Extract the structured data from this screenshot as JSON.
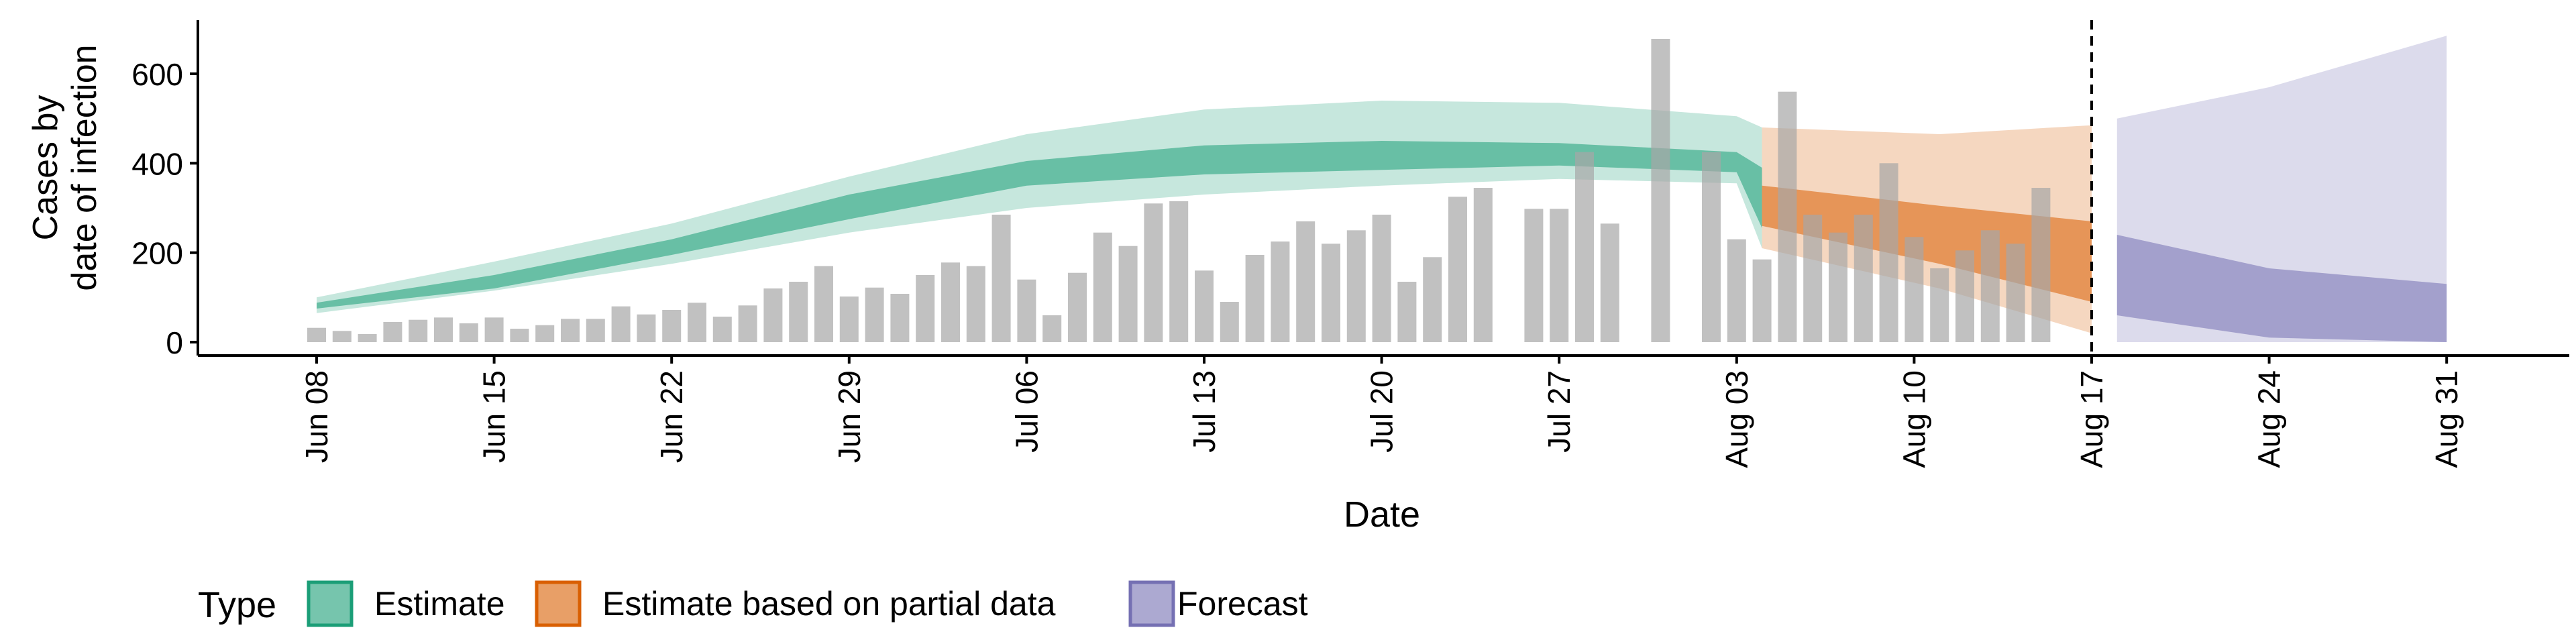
{
  "chart_data": {
    "type": "area",
    "xlabel": "Date",
    "ylabel_lines": [
      "Cases by",
      "date of infection"
    ],
    "ylim": [
      -30,
      720
    ],
    "y_ticks": [
      0,
      200,
      400,
      600
    ],
    "x_ticks": [
      "Jun 08",
      "Jun 15",
      "Jun 22",
      "Jun 29",
      "Jul 06",
      "Jul 13",
      "Jul 20",
      "Jul 27",
      "Aug 03",
      "Aug 10",
      "Aug 17",
      "Aug 24",
      "Aug 31"
    ],
    "forecast_start_line": "Aug 17",
    "legend": {
      "title": "Type",
      "placement": "bottom-left",
      "items": [
        {
          "label": "Estimate",
          "color": "#1b9e77"
        },
        {
          "label": "Estimate based on partial data",
          "color": "#d95f02"
        },
        {
          "label": "Forecast",
          "color": "#7570b3"
        }
      ]
    },
    "bars": {
      "color": "#a6a6a6",
      "start_date": "Jun 08",
      "values": [
        32,
        25,
        18,
        45,
        50,
        55,
        42,
        55,
        30,
        38,
        52,
        52,
        80,
        62,
        72,
        88,
        57,
        82,
        120,
        135,
        170,
        102,
        122,
        108,
        150,
        178,
        170,
        285,
        140,
        60,
        155,
        245,
        215,
        310,
        315,
        160,
        90,
        195,
        225,
        270,
        220,
        250,
        285,
        135,
        190,
        325,
        345,
        0,
        298,
        298,
        425,
        265,
        0,
        678,
        0,
        425,
        230,
        185,
        560,
        285,
        245,
        285,
        400,
        235,
        165,
        205,
        250,
        220,
        345,
        0
      ]
    },
    "series": [
      {
        "name": "Estimate",
        "color": "#1b9e77",
        "start_date": "Jun 08",
        "points": [
          [
            0,
            65,
            100,
            75,
            88
          ],
          [
            7,
            115,
            180,
            120,
            150
          ],
          [
            14,
            175,
            265,
            195,
            230
          ],
          [
            21,
            245,
            370,
            275,
            330
          ],
          [
            28,
            300,
            465,
            350,
            405
          ],
          [
            35,
            330,
            520,
            375,
            440
          ],
          [
            42,
            350,
            540,
            385,
            450
          ],
          [
            49,
            365,
            535,
            395,
            445
          ],
          [
            56,
            355,
            505,
            380,
            425
          ],
          [
            57,
            210,
            480,
            255,
            390
          ]
        ]
      },
      {
        "name": "Estimate based on partial data",
        "color": "#d95f02",
        "start_date": "Aug 04",
        "points": [
          [
            0,
            210,
            480,
            260,
            350
          ],
          [
            7,
            120,
            465,
            175,
            305
          ],
          [
            13,
            20,
            485,
            90,
            270
          ]
        ]
      },
      {
        "name": "Forecast",
        "color": "#7570b3",
        "start_date": "Aug 18",
        "points": [
          [
            0,
            0,
            500,
            60,
            240
          ],
          [
            6,
            0,
            570,
            10,
            165
          ],
          [
            13,
            0,
            685,
            0,
            130
          ]
        ]
      }
    ]
  }
}
